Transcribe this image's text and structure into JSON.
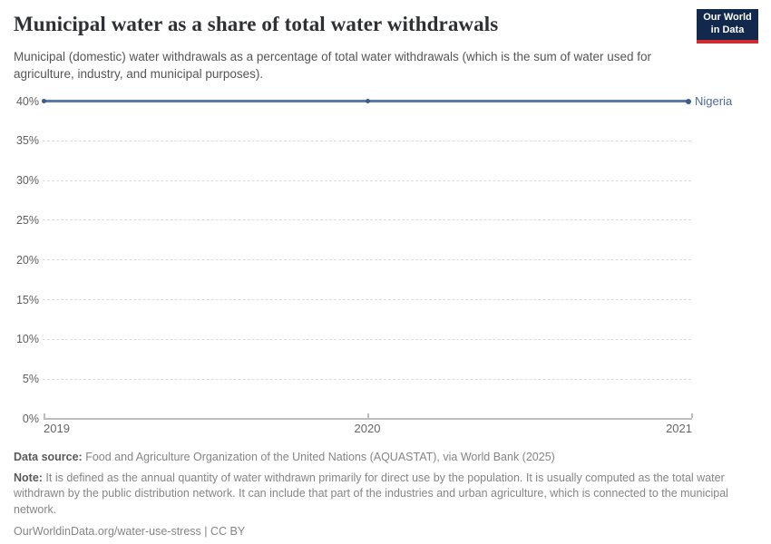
{
  "header": {
    "title": "Municipal water as a share of total water withdrawals",
    "subtitle": "Municipal (domestic) water withdrawals as a percentage of total water withdrawals (which is the sum of water used for agriculture, industry, and municipal purposes).",
    "logo": {
      "line1": "Our World",
      "line2": "in Data",
      "bg_color": "#12294d",
      "accent_color": "#d12b32"
    }
  },
  "chart_data": {
    "type": "line",
    "title": "Municipal water as a share of total water withdrawals",
    "x": [
      2019,
      2020,
      2021
    ],
    "x_tick_labels": [
      "2019",
      "2020",
      "2021"
    ],
    "series": [
      {
        "name": "Nigeria",
        "values": [
          40,
          40,
          40
        ],
        "color": "#5b7aab",
        "marker_color": "#3d5c8f",
        "label_color": "#4c6a9c"
      }
    ],
    "ylim": [
      0,
      40
    ],
    "yticks": [
      0,
      5,
      10,
      15,
      20,
      25,
      30,
      35,
      40
    ],
    "ytick_suffix": "%",
    "grid": "horizontal-dashed",
    "legend_position": "end-of-line-label"
  },
  "footer": {
    "data_source_label": "Data source:",
    "data_source_text": " Food and Agriculture Organization of the United Nations (AQUASTAT), via World Bank (2025)",
    "note_label": "Note:",
    "note_text": " It is defined as the annual quantity of water withdrawn primarily for direct use by the population. It is usually computed as the total water withdrawn by the public distribution network. It can include that part of the industries and urban agriculture, which is connected to the municipal network.",
    "citation": "OurWorldinData.org/water-use-stress | CC BY"
  }
}
